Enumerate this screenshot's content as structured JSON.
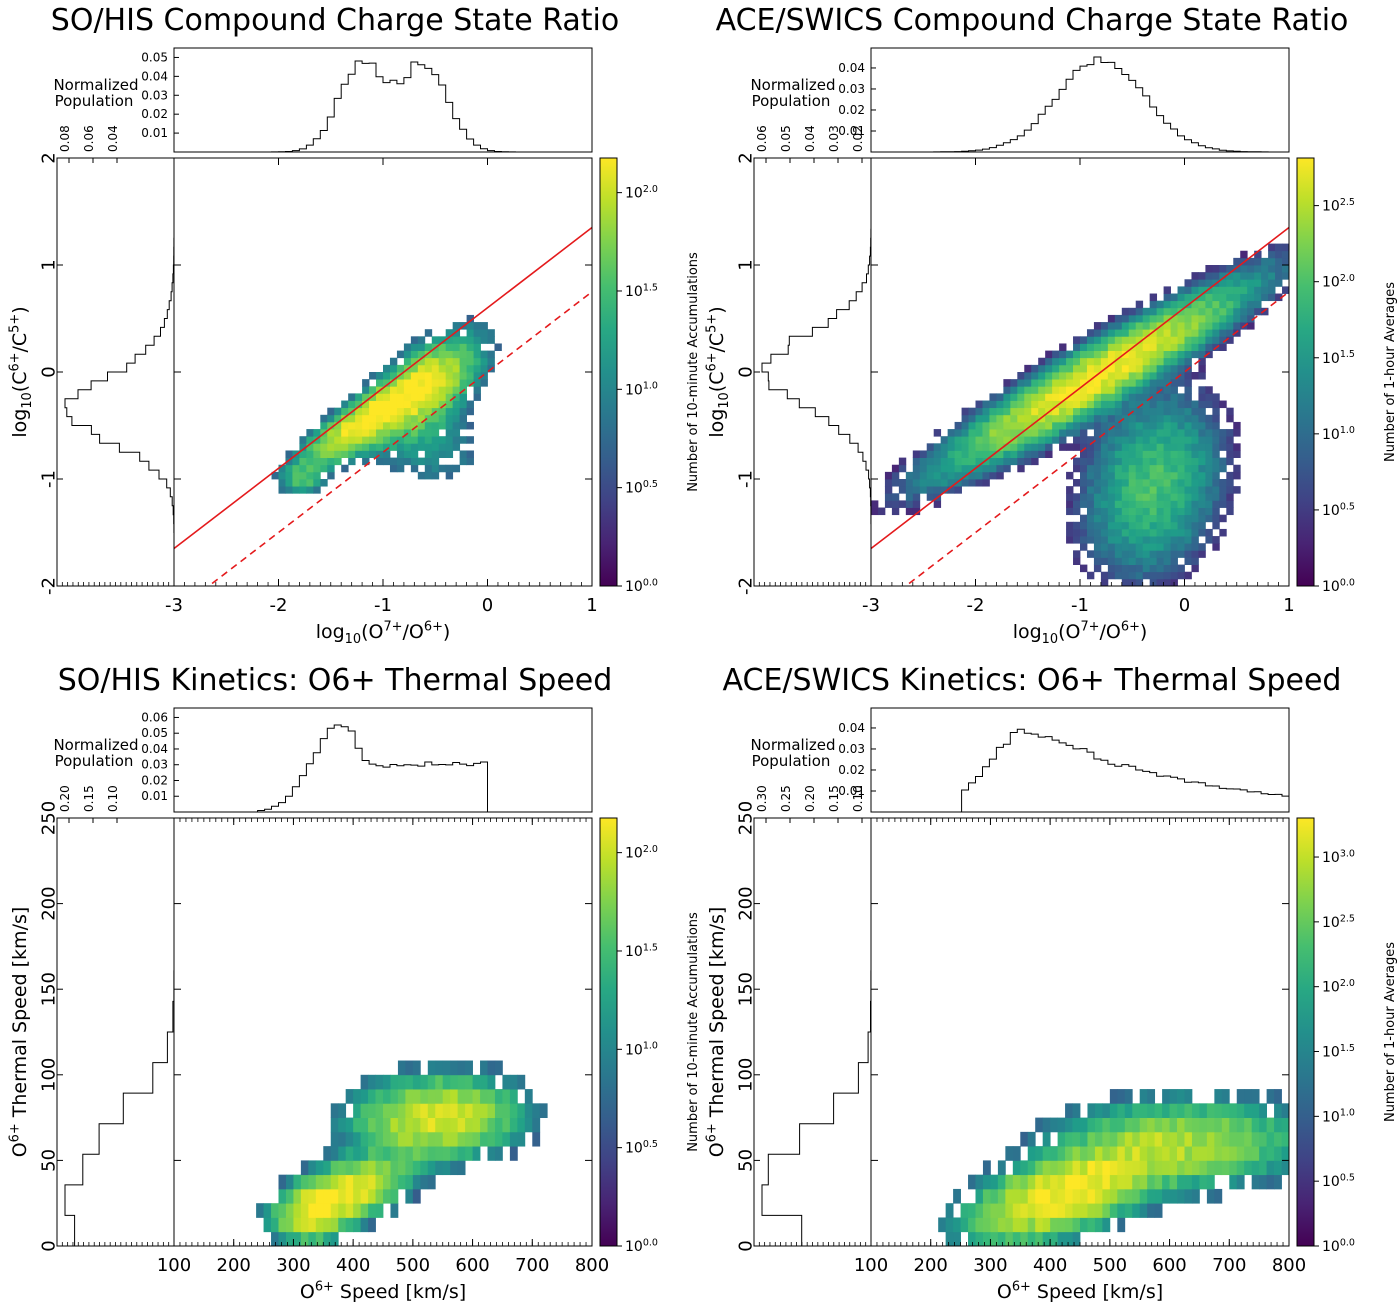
{
  "panels": [
    {
      "title": "SO/HIS Compound Charge State Ratio",
      "kind": "ratio",
      "marginal_label_1": "Normalized",
      "marginal_label_2": "Population",
      "colorbar_label": "Number of 10-minute Accumulations",
      "top_hist_ticks": [
        "0.01",
        "0.02",
        "0.03",
        "0.04",
        "0.05"
      ],
      "left_hist_ticks": [
        "0.08",
        "0.06",
        "0.04"
      ],
      "colorbar_ticks": [
        "10^0.0",
        "10^0.5",
        "10^1.0",
        "10^1.5",
        "10^2.0"
      ]
    },
    {
      "title": "ACE/SWICS Compound Charge State Ratio",
      "kind": "ratio",
      "marginal_label_1": "Normalized",
      "marginal_label_2": "Population",
      "colorbar_label": "Number of 1-hour Averages",
      "top_hist_ticks": [
        "0.01",
        "0.02",
        "0.03",
        "0.04"
      ],
      "left_hist_ticks": [
        "0.06",
        "0.05",
        "0.04",
        "0.03",
        "0.02"
      ],
      "colorbar_ticks": [
        "10^0.0",
        "10^0.5",
        "10^1.0",
        "10^1.5",
        "10^2.0",
        "10^2.5"
      ]
    },
    {
      "title": "SO/HIS Kinetics: O6+ Thermal Speed",
      "kind": "speed",
      "marginal_label_1": "Normalized",
      "marginal_label_2": "Population",
      "colorbar_label": "Number of 10-minute Accumulations",
      "top_hist_ticks": [
        "0.01",
        "0.02",
        "0.03",
        "0.04",
        "0.05",
        "0.06"
      ],
      "left_hist_ticks": [
        "0.20",
        "0.15",
        "0.10"
      ],
      "colorbar_ticks": [
        "10^0.0",
        "10^0.5",
        "10^1.0",
        "10^1.5",
        "10^2.0"
      ]
    },
    {
      "title": "ACE/SWICS Kinetics: O6+ Thermal Speed",
      "kind": "speed",
      "marginal_label_1": "Normalized",
      "marginal_label_2": "Population",
      "colorbar_label": "Number of 1-hour Averages",
      "top_hist_ticks": [
        "0.01",
        "0.02",
        "0.03",
        "0.04"
      ],
      "left_hist_ticks": [
        "0.30",
        "0.25",
        "0.20",
        "0.15",
        "0.10"
      ],
      "colorbar_ticks": [
        "10^0.0",
        "10^0.5",
        "10^1.0",
        "10^1.5",
        "10^2.0",
        "10^2.5",
        "10^3.0"
      ]
    }
  ],
  "axis_text": {
    "ratio_x": "log10(O7+/O6+)",
    "ratio_y": "log10(C6+/C5+)",
    "speed_x": "O6+ Speed [km/s]",
    "speed_y": "O6+ Thermal Speed [km/s]",
    "ratio_x_ticks": [
      "-3",
      "-2",
      "-1",
      "0",
      "1"
    ],
    "ratio_y_ticks": [
      "-2",
      "-1",
      "0",
      "1",
      "2"
    ],
    "speed_x_ticks": [
      "100",
      "200",
      "300",
      "400",
      "500",
      "600",
      "700",
      "800"
    ],
    "speed_y_ticks": [
      "0",
      "50",
      "100",
      "150",
      "200",
      "250"
    ]
  },
  "chart_data": [
    {
      "type": "heatmap",
      "title": "SO/HIS Compound Charge State Ratio",
      "xlabel": "log10(O7+/O6+)",
      "ylabel": "log10(C6+/C5+)",
      "xlim": [
        -3,
        1
      ],
      "ylim": [
        -2,
        2
      ],
      "colorbar": {
        "label": "Number of 10-minute Accumulations",
        "scale": "log",
        "range": [
          1,
          150
        ]
      },
      "density_peaks": [
        {
          "x": -1.15,
          "y": -0.45
        },
        {
          "x": -0.6,
          "y": -0.15
        }
      ],
      "reference_lines": [
        {
          "style": "solid",
          "color": "#e41a1c",
          "slope": 0.75,
          "intercept": 0.6
        },
        {
          "style": "dashed",
          "color": "#e41a1c",
          "slope": 0.75,
          "intercept": 0.0
        }
      ],
      "top_histogram": {
        "ylabel": "Normalized Population",
        "ymax": 0.05,
        "peaks": [
          {
            "x": -1.2,
            "value": 0.047
          },
          {
            "x": -0.6,
            "value": 0.046
          }
        ]
      },
      "side_histogram": {
        "peak": {
          "y": -0.4,
          "value": 0.09
        }
      }
    },
    {
      "type": "heatmap",
      "title": "ACE/SWICS Compound Charge State Ratio",
      "xlabel": "log10(O7+/O6+)",
      "ylabel": "log10(C6+/C5+)",
      "xlim": [
        -3,
        1
      ],
      "ylim": [
        -2,
        2
      ],
      "colorbar": {
        "label": "Number of 1-hour Averages",
        "scale": "log",
        "range": [
          1,
          650
        ]
      },
      "density_peaks": [
        {
          "x": -0.8,
          "y": -0.05
        }
      ],
      "reference_lines": [
        {
          "style": "solid",
          "color": "#e41a1c",
          "slope": 0.75,
          "intercept": 0.6
        },
        {
          "style": "dashed",
          "color": "#e41a1c",
          "slope": 0.75,
          "intercept": 0.0
        }
      ],
      "top_histogram": {
        "ylabel": "Normalized Population",
        "ymax": 0.045,
        "peaks": [
          {
            "x": -0.8,
            "value": 0.043
          }
        ]
      },
      "side_histogram": {
        "peak": {
          "y": 0.0,
          "value": 0.06
        }
      }
    },
    {
      "type": "heatmap",
      "title": "SO/HIS Kinetics: O6+ Thermal Speed",
      "xlabel": "O6+ Speed [km/s]",
      "ylabel": "O6+ Thermal Speed [km/s]",
      "xlim": [
        100,
        800
      ],
      "ylim": [
        0,
        250
      ],
      "colorbar": {
        "label": "Number of 10-minute Accumulations",
        "scale": "log",
        "range": [
          1,
          150
        ]
      },
      "top_histogram": {
        "ylabel": "Normalized Population",
        "ymax": 0.06,
        "peaks": [
          {
            "x": 375,
            "value": 0.055
          },
          {
            "x": 590,
            "value": 0.03
          }
        ]
      },
      "side_histogram": {
        "peak": {
          "y": 15,
          "value": 0.22
        }
      }
    },
    {
      "type": "heatmap",
      "title": "ACE/SWICS Kinetics: O6+ Thermal Speed",
      "xlabel": "O6+ Speed [km/s]",
      "ylabel": "O6+ Thermal Speed [km/s]",
      "xlim": [
        100,
        800
      ],
      "ylim": [
        0,
        250
      ],
      "colorbar": {
        "label": "Number of 1-hour Averages",
        "scale": "log",
        "range": [
          1,
          2000
        ]
      },
      "top_histogram": {
        "ylabel": "Normalized Population",
        "ymax": 0.045,
        "peaks": [
          {
            "x": 370,
            "value": 0.04
          }
        ]
      },
      "side_histogram": {
        "peak": {
          "y": 35,
          "value": 0.32
        }
      }
    }
  ]
}
